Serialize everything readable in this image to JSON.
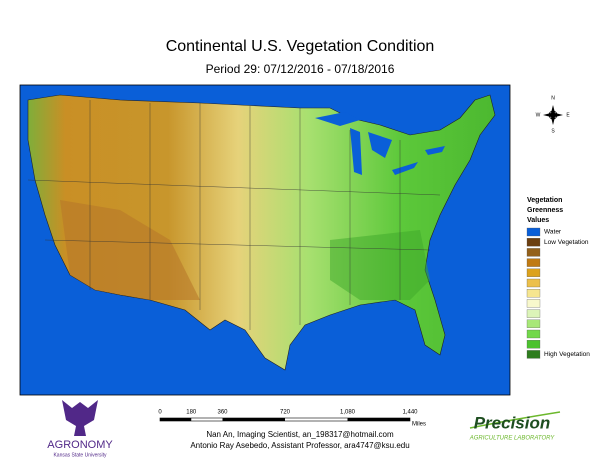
{
  "header": {
    "title": "Continental U.S. Vegetation Condition",
    "subtitle": "Period 29: 07/12/2016 - 07/18/2016"
  },
  "compass": {
    "north": "N",
    "west": "W",
    "east": "E",
    "south": "S"
  },
  "legend": {
    "title": "Vegetation Greenness Values",
    "items": [
      {
        "label": "Water",
        "color": "#0a5fd8"
      },
      {
        "label": "Low Vegetation",
        "color": "#6b3f10"
      },
      {
        "color": "#93601a"
      },
      {
        "color": "#c07a12"
      },
      {
        "color": "#dca21c"
      },
      {
        "color": "#ecc04a"
      },
      {
        "color": "#f6e690"
      },
      {
        "color": "#f8f8cc"
      },
      {
        "color": "#dcf4b8"
      },
      {
        "color": "#a8e878"
      },
      {
        "color": "#72d84a"
      },
      {
        "color": "#4cc22e"
      },
      {
        "label": "High Vegetation",
        "color": "#2e7d1e"
      }
    ]
  },
  "scale_bar": {
    "labels": [
      "0",
      "180",
      "360",
      "720",
      "1,080",
      "1,440"
    ],
    "unit": "Miles"
  },
  "credits": [
    "Nan An, Imaging Scientist, an_198317@hotmail.com",
    "Antonio Ray Asebedo, Assistant Professor, ara4747@ksu.edu"
  ],
  "logos": {
    "left": {
      "name": "AGRONOMY",
      "sub": "Kansas State University"
    },
    "right": {
      "name": "Precision",
      "sub": "Agriculture Laboratory"
    }
  }
}
